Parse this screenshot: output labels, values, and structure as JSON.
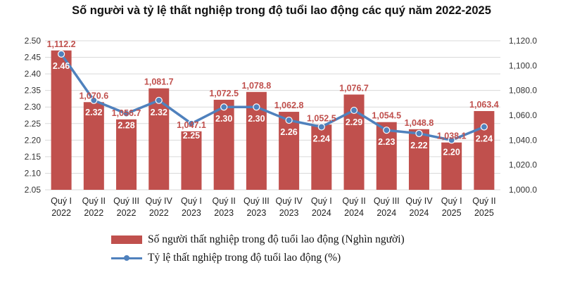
{
  "chart_data": {
    "type": "bar",
    "title": "Số người và tỷ lệ thất nghiệp trong độ tuổi lao động các quý năm 2022-2025",
    "categories": [
      [
        "Quý I",
        "2022"
      ],
      [
        "Quý II",
        "2022"
      ],
      [
        "Quý III",
        "2022"
      ],
      [
        "Quý IV",
        "2022"
      ],
      [
        "Quý I",
        "2023"
      ],
      [
        "Quý II",
        "2023"
      ],
      [
        "Quý III",
        "2023"
      ],
      [
        "Quý IV",
        "2023"
      ],
      [
        "Quý I",
        "2024"
      ],
      [
        "Quý II",
        "2024"
      ],
      [
        "Quý III",
        "2024"
      ],
      [
        "Quý IV",
        "2024"
      ],
      [
        "Quý I",
        "2025"
      ],
      [
        "Quý II",
        "2025"
      ]
    ],
    "series": [
      {
        "name": "Số người thất nghiệp trong độ tuổi lao động (Nghìn người)",
        "type": "bar",
        "axis": "right",
        "color": "#c0504d",
        "values": [
          1112.2,
          1070.6,
          1056.7,
          1081.7,
          1047.1,
          1072.5,
          1078.8,
          1062.8,
          1052.5,
          1076.7,
          1054.5,
          1048.8,
          1038.1,
          1063.4
        ],
        "labels": [
          "1,112.2",
          "1,070.6",
          "1,056.7",
          "1,081.7",
          "1,047.1",
          "1,072.5",
          "1,078.8",
          "1,062.8",
          "1,052.5",
          "1,076.7",
          "1,054.5",
          "1,048.8",
          "1,038.1",
          "1,063.4"
        ]
      },
      {
        "name": "Tỷ lệ thất nghiệp trong độ tuổi lao động (%)",
        "type": "line",
        "axis": "left",
        "color": "#4f81bd",
        "values": [
          2.46,
          2.32,
          2.28,
          2.32,
          2.25,
          2.3,
          2.3,
          2.26,
          2.24,
          2.29,
          2.23,
          2.22,
          2.2,
          2.24
        ],
        "labels": [
          "2.46",
          "2.32",
          "2.28",
          "2.32",
          "2.25",
          "2.30",
          "2.30",
          "2.26",
          "2.24",
          "2.29",
          "2.23",
          "2.22",
          "2.20",
          "2.24"
        ]
      }
    ],
    "y_left": {
      "min": 2.05,
      "max": 2.5,
      "ticks": [
        "2.05",
        "2.10",
        "2.15",
        "2.20",
        "2.25",
        "2.30",
        "2.35",
        "2.40",
        "2.45",
        "2.50"
      ]
    },
    "y_right": {
      "min": 1000,
      "max": 1120,
      "ticks": [
        "1,000.0",
        "1,020.0",
        "1,040.0",
        "1,060.0",
        "1,080.0",
        "1,100.0",
        "1,120.0"
      ]
    },
    "grid": true,
    "legend_position": "bottom",
    "colors": {
      "bar": "#c0504d",
      "line": "#4f81bd",
      "bar_label": "#c0504d",
      "line_label": "#ffffff",
      "grid": "#d9d9d9"
    }
  }
}
